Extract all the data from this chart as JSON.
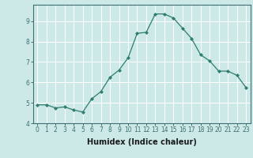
{
  "x": [
    0,
    1,
    2,
    3,
    4,
    5,
    6,
    7,
    8,
    9,
    10,
    11,
    12,
    13,
    14,
    15,
    16,
    17,
    18,
    19,
    20,
    21,
    22,
    23
  ],
  "y": [
    4.9,
    4.9,
    4.75,
    4.8,
    4.65,
    4.55,
    5.2,
    5.55,
    6.25,
    6.6,
    7.2,
    8.4,
    8.45,
    9.35,
    9.35,
    9.15,
    8.65,
    8.15,
    7.35,
    7.05,
    6.55,
    6.55,
    6.35,
    5.75
  ],
  "line_color": "#2e7d6e",
  "marker": "D",
  "marker_size": 2,
  "xlabel": "Humidex (Indice chaleur)",
  "xlim": [
    -0.5,
    23.5
  ],
  "ylim": [
    4.0,
    9.8
  ],
  "yticks": [
    4,
    5,
    6,
    7,
    8,
    9
  ],
  "xticks": [
    0,
    1,
    2,
    3,
    4,
    5,
    6,
    7,
    8,
    9,
    10,
    11,
    12,
    13,
    14,
    15,
    16,
    17,
    18,
    19,
    20,
    21,
    22,
    23
  ],
  "bg_color": "#cce9e8",
  "grid_color": "#ffffff",
  "axis_color": "#3d7070",
  "tick_label_color": "#3d7070",
  "xlabel_color": "#1a1a1a",
  "tick_fontsize": 5.5,
  "xlabel_fontsize": 7.0
}
